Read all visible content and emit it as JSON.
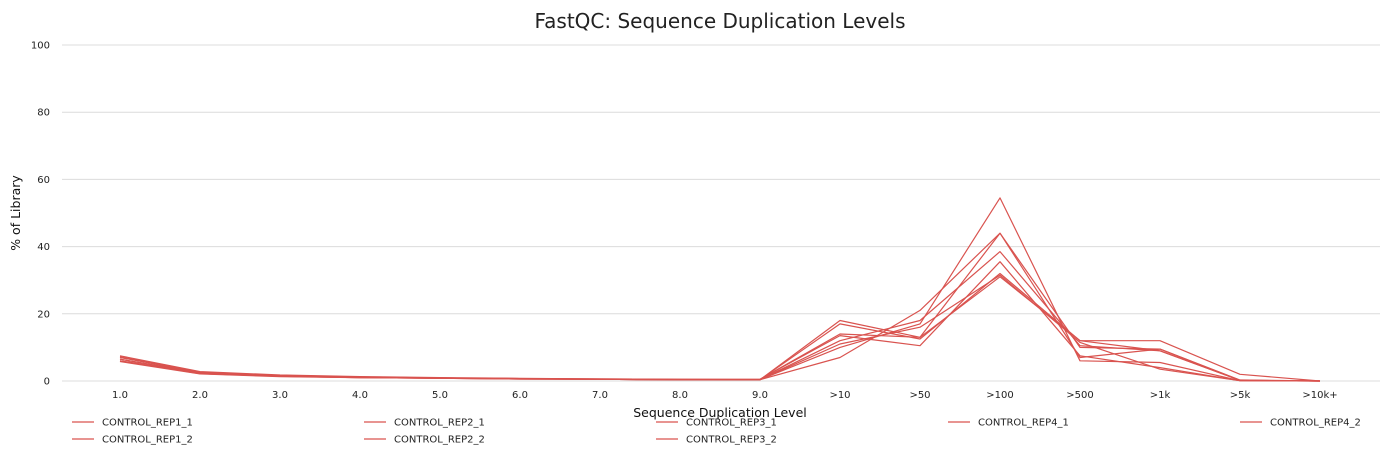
{
  "chart_data": {
    "type": "line",
    "title": "FastQC: Sequence Duplication Levels",
    "xlabel": "Sequence Duplication Level",
    "ylabel": "% of Library",
    "ylim": [
      0,
      100
    ],
    "yticks": [
      0,
      20,
      40,
      60,
      80,
      100
    ],
    "grid": true,
    "legend_position": "bottom",
    "line_color": "#d9534f",
    "categories": [
      "1.0",
      "2.0",
      "3.0",
      "4.0",
      "5.0",
      "6.0",
      "7.0",
      "8.0",
      "9.0",
      ">10",
      ">50",
      ">100",
      ">500",
      ">1k",
      ">5k",
      ">10k+"
    ],
    "series": [
      {
        "name": "CONTROL_REP1_1",
        "values": [
          7.5,
          2.8,
          1.8,
          1.3,
          1.0,
          0.8,
          0.6,
          0.5,
          0.5,
          14.0,
          13.0,
          44.0,
          10.0,
          9.5,
          0.3,
          0.0
        ]
      },
      {
        "name": "CONTROL_REP1_2",
        "values": [
          7.0,
          2.5,
          1.6,
          1.2,
          0.9,
          0.7,
          0.6,
          0.5,
          0.4,
          12.0,
          18.0,
          38.5,
          10.5,
          9.0,
          0.2,
          0.0
        ]
      },
      {
        "name": "CONTROL_REP2_1",
        "values": [
          6.5,
          2.4,
          1.5,
          1.1,
          0.9,
          0.7,
          0.5,
          0.4,
          0.4,
          18.0,
          13.0,
          31.0,
          12.0,
          12.0,
          2.0,
          0.0
        ]
      },
      {
        "name": "CONTROL_REP2_2",
        "values": [
          6.0,
          2.2,
          1.4,
          1.0,
          0.8,
          0.6,
          0.5,
          0.4,
          0.4,
          17.0,
          12.5,
          32.0,
          12.0,
          9.0,
          0.2,
          0.0
        ]
      },
      {
        "name": "CONTROL_REP3_1",
        "values": [
          6.5,
          2.3,
          1.5,
          1.1,
          0.8,
          0.7,
          0.5,
          0.4,
          0.4,
          7.0,
          21.0,
          44.0,
          7.0,
          9.5,
          0.2,
          0.0
        ]
      },
      {
        "name": "CONTROL_REP3_2",
        "values": [
          6.0,
          2.2,
          1.4,
          1.0,
          0.8,
          0.6,
          0.5,
          0.4,
          0.4,
          10.0,
          17.0,
          54.5,
          6.0,
          5.5,
          0.1,
          0.0
        ]
      },
      {
        "name": "CONTROL_REP4_1",
        "values": [
          7.2,
          2.6,
          1.7,
          1.2,
          0.9,
          0.7,
          0.6,
          0.5,
          0.5,
          13.5,
          10.5,
          35.5,
          7.5,
          4.0,
          0.1,
          0.0
        ]
      },
      {
        "name": "CONTROL_REP4_2",
        "values": [
          5.8,
          2.1,
          1.3,
          1.0,
          0.8,
          0.6,
          0.5,
          0.4,
          0.4,
          11.0,
          16.0,
          31.5,
          11.5,
          3.5,
          0.1,
          0.0
        ]
      }
    ]
  }
}
